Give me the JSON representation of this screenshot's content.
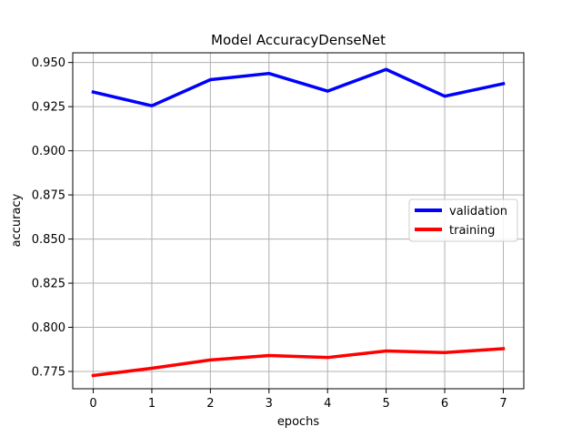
{
  "chart_data": {
    "type": "line",
    "title": "Model AccuracyDenseNet",
    "xlabel": "epochs",
    "ylabel": "accuracy",
    "x": [
      0,
      1,
      2,
      3,
      4,
      5,
      6,
      7
    ],
    "x_ticks": [
      "0",
      "1",
      "2",
      "3",
      "4",
      "5",
      "6",
      "7"
    ],
    "y_ticks": [
      "0.775",
      "0.800",
      "0.825",
      "0.850",
      "0.875",
      "0.900",
      "0.925",
      "0.950"
    ],
    "y_tick_values": [
      0.775,
      0.8,
      0.825,
      0.85,
      0.875,
      0.9,
      0.925,
      0.95
    ],
    "xlim": [
      -0.35,
      7.35
    ],
    "ylim": [
      0.7652,
      0.9555
    ],
    "grid": true,
    "legend_position": "center-right",
    "series": [
      {
        "name": "validation",
        "color": "#0000ff",
        "values": [
          0.9333,
          0.9255,
          0.9403,
          0.9438,
          0.9338,
          0.9461,
          0.9309,
          0.938
        ]
      },
      {
        "name": "training",
        "color": "#ff0000",
        "values": [
          0.7727,
          0.7768,
          0.7815,
          0.784,
          0.7829,
          0.7866,
          0.7857,
          0.7879
        ]
      }
    ]
  }
}
